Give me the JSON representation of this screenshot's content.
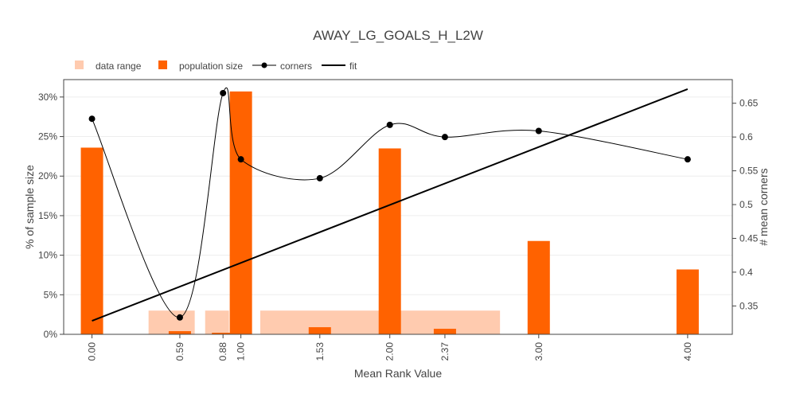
{
  "colors": {
    "data_range": "#FFCBAF",
    "population": "#FF6200",
    "line": "#000000",
    "grid": "#EEEEEE",
    "text": "#444444"
  },
  "chart_data": {
    "type": "bar",
    "title": "AWAY_LG_GOALS_H_L2W",
    "xlabel": "Mean Rank Value",
    "ylabel": "% of sample size",
    "y2label": "# mean corners",
    "legend": {
      "position": "top-left",
      "items": [
        "data range",
        "population size",
        "corners",
        "fit"
      ]
    },
    "xlim": [
      -0.19,
      4.3
    ],
    "ylim": [
      0,
      32.2
    ],
    "y2lim": [
      0.308,
      0.685
    ],
    "x_ticks": [
      0.0,
      0.59,
      0.88,
      1.0,
      1.53,
      2.0,
      2.37,
      3.0,
      4.0
    ],
    "x_tick_labels": [
      "0.00",
      "0.59",
      "0.88",
      "1.00",
      "1.53",
      "2.00",
      "2.37",
      "3.00",
      "4.00"
    ],
    "y_ticks": [
      0,
      5,
      10,
      15,
      20,
      25,
      30
    ],
    "y_tick_labels": [
      "0%",
      "5%",
      "10%",
      "15%",
      "20%",
      "25%",
      "30%"
    ],
    "y2_ticks": [
      0.35,
      0.4,
      0.45,
      0.5,
      0.55,
      0.6,
      0.65
    ],
    "y2_tick_labels": [
      "0.35",
      "0.4",
      "0.45",
      "0.5",
      "0.55",
      "0.6",
      "0.65"
    ],
    "grid": true,
    "data_range": [
      {
        "x0": 0.38,
        "x1": 0.69,
        "value": 3
      },
      {
        "x0": 0.76,
        "x1": 0.92,
        "value": 3
      },
      {
        "x0": 1.13,
        "x1": 1.99,
        "value": 3
      },
      {
        "x0": 2.01,
        "x1": 2.74,
        "value": 3
      }
    ],
    "population_size": {
      "x": [
        0.0,
        0.59,
        0.88,
        1.0,
        1.53,
        2.0,
        2.37,
        3.0,
        4.0
      ],
      "values": [
        23.6,
        0.4,
        0.2,
        30.7,
        0.9,
        23.5,
        0.7,
        11.8,
        8.2
      ]
    },
    "corners": {
      "x": [
        0.0,
        0.59,
        0.88,
        1.0,
        1.53,
        2.0,
        2.37,
        3.0,
        4.0
      ],
      "values": [
        0.627,
        0.333,
        0.665,
        0.567,
        0.539,
        0.618,
        0.6,
        0.609,
        0.567
      ]
    },
    "fit": {
      "x": [
        0.0,
        4.0
      ],
      "values": [
        0.328,
        0.671
      ]
    }
  }
}
